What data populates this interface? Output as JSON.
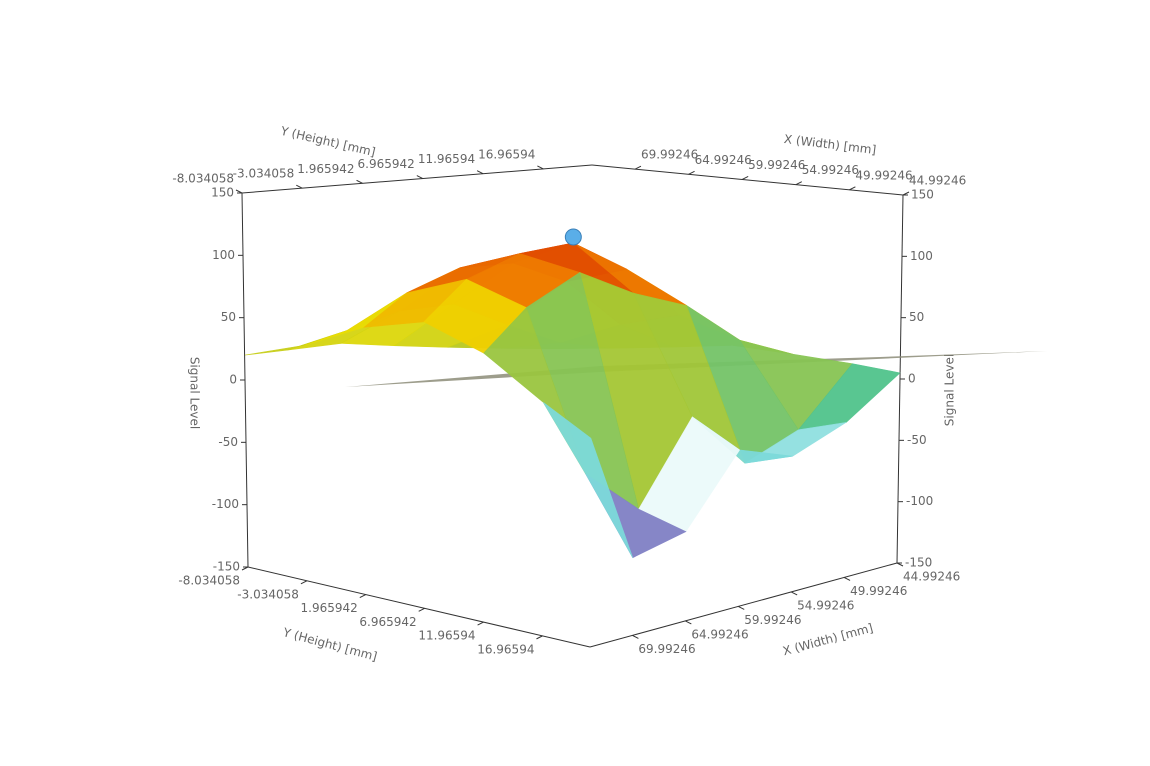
{
  "chart_data": {
    "type": "surface3d",
    "x_label": "X (Width) [mm]",
    "y_label": "Y (Height) [mm]",
    "z_label": "Signal Level",
    "xticks": [
      44.99246,
      49.99246,
      54.99246,
      59.99246,
      64.99246,
      69.99246
    ],
    "yticks": [
      -8.034058,
      -3.034058,
      1.965942,
      6.965942,
      11.96594,
      16.96594
    ],
    "zticks": [
      -150,
      -100,
      -50,
      0,
      50,
      100,
      150
    ],
    "xlim": [
      44.99246,
      74
    ],
    "ylim": [
      -8.034058,
      21
    ],
    "zlim": [
      -150,
      150
    ],
    "x": [
      45,
      50,
      55,
      60,
      65,
      70,
      74
    ],
    "y": [
      -8,
      -3,
      2,
      7,
      12,
      17,
      21
    ],
    "z": [
      [
        5,
        10,
        15,
        20,
        25,
        22,
        20
      ],
      [
        10,
        20,
        40,
        60,
        55,
        40,
        30
      ],
      [
        15,
        40,
        80,
        95,
        90,
        70,
        45
      ],
      [
        20,
        50,
        90,
        110,
        100,
        80,
        50
      ],
      [
        15,
        30,
        60,
        70,
        85,
        60,
        30
      ],
      [
        10,
        -40,
        -60,
        -20,
        -80,
        -50,
        0
      ],
      [
        5,
        -30,
        -50,
        -40,
        -90,
        -100,
        -20
      ]
    ],
    "colorscale": [
      [
        -100,
        "#00008b"
      ],
      [
        -60,
        "#ffffff"
      ],
      [
        -30,
        "#20c0c0"
      ],
      [
        20,
        "#b8c820"
      ],
      [
        50,
        "#f0e000"
      ],
      [
        80,
        "#f08000"
      ],
      [
        110,
        "#cc0000"
      ]
    ],
    "marker": {
      "x": 60,
      "y": 7,
      "z": 110,
      "color": "#5aaee8"
    }
  }
}
